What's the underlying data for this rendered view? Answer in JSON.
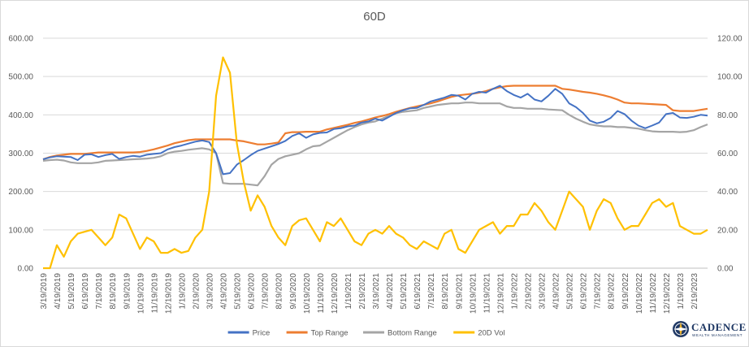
{
  "brand": {
    "name": "CADENCE",
    "tagline": "WEALTH MANAGEMENT",
    "logo_icon": "compass-globe-icon"
  },
  "chart_data": {
    "type": "line",
    "title": "60D",
    "y_left": {
      "ylim": [
        0,
        600
      ],
      "ticks": [
        "0.00",
        "100.00",
        "200.00",
        "300.00",
        "400.00",
        "500.00",
        "600.00"
      ]
    },
    "y_right": {
      "ylim": [
        0,
        120
      ],
      "ticks": [
        "0.00",
        "20.00",
        "40.00",
        "60.00",
        "80.00",
        "100.00",
        "120.00"
      ]
    },
    "x_ticks": [
      "3/19/2019",
      "4/19/2019",
      "5/19/2019",
      "6/19/2019",
      "7/19/2019",
      "8/19/2019",
      "9/19/2019",
      "10/19/2019",
      "11/19/2019",
      "12/19/2019",
      "1/19/2020",
      "2/19/2020",
      "3/19/2020",
      "4/19/2020",
      "5/19/2020",
      "6/19/2020",
      "7/19/2020",
      "8/19/2020",
      "9/19/2020",
      "10/19/2020",
      "11/19/2020",
      "12/19/2020",
      "1/19/2021",
      "2/19/2021",
      "3/19/2021",
      "4/19/2021",
      "5/19/2021",
      "6/19/2021",
      "7/19/2021",
      "8/19/2021",
      "9/19/2021",
      "10/19/2021",
      "11/19/2021",
      "12/19/2021",
      "1/19/2022",
      "2/19/2022",
      "3/19/2022",
      "4/19/2022",
      "5/19/2022",
      "6/19/2022",
      "7/19/2022",
      "8/19/2022",
      "9/19/2022",
      "10/19/2022",
      "11/19/2022",
      "12/19/2022",
      "1/19/2023",
      "2/19/2023"
    ],
    "grid": true,
    "legend_position": "bottom",
    "series": [
      {
        "name": "Price",
        "axis": "left",
        "color": "#4472c4",
        "values": [
          284,
          289,
          292,
          291,
          290,
          282,
          296,
          297,
          290,
          295,
          298,
          285,
          290,
          293,
          291,
          296,
          298,
          300,
          310,
          316,
          320,
          325,
          330,
          333,
          329,
          300,
          245,
          248,
          270,
          282,
          295,
          306,
          312,
          318,
          324,
          332,
          345,
          352,
          340,
          349,
          353,
          354,
          363,
          365,
          370,
          372,
          380,
          383,
          390,
          385,
          395,
          405,
          412,
          417,
          418,
          426,
          435,
          440,
          445,
          452,
          450,
          440,
          455,
          460,
          458,
          468,
          476,
          462,
          452,
          445,
          455,
          440,
          435,
          450,
          468,
          455,
          430,
          420,
          405,
          385,
          378,
          382,
          392,
          410,
          402,
          385,
          372,
          365,
          372,
          380,
          402,
          405,
          393,
          392,
          395,
          400,
          398
        ]
      },
      {
        "name": "Top Range",
        "axis": "left",
        "color": "#ed7d31",
        "values": [
          284,
          290,
          294,
          296,
          298,
          298,
          298,
          300,
          302,
          302,
          302,
          302,
          302,
          302,
          303,
          306,
          310,
          315,
          320,
          326,
          330,
          334,
          336,
          336,
          336,
          336,
          336,
          336,
          333,
          331,
          327,
          323,
          323,
          325,
          328,
          352,
          355,
          355,
          356,
          356,
          356,
          362,
          366,
          370,
          374,
          379,
          383,
          388,
          393,
          397,
          402,
          408,
          413,
          418,
          422,
          426,
          430,
          435,
          441,
          447,
          451,
          453,
          455,
          458,
          462,
          468,
          472,
          475,
          476,
          476,
          476,
          476,
          476,
          476,
          476,
          468,
          466,
          463,
          460,
          458,
          455,
          451,
          446,
          440,
          432,
          430,
          430,
          429,
          428,
          427,
          426,
          412,
          410,
          410,
          410,
          413,
          416
        ]
      },
      {
        "name": "Bottom Range",
        "axis": "left",
        "color": "#a5a5a5",
        "values": [
          280,
          282,
          283,
          281,
          276,
          274,
          274,
          274,
          276,
          280,
          281,
          282,
          283,
          284,
          285,
          286,
          288,
          292,
          300,
          304,
          306,
          309,
          311,
          313,
          310,
          300,
          222,
          220,
          220,
          220,
          218,
          216,
          240,
          270,
          285,
          292,
          296,
          300,
          310,
          318,
          320,
          330,
          340,
          350,
          360,
          368,
          375,
          380,
          383,
          390,
          398,
          404,
          408,
          410,
          412,
          418,
          422,
          426,
          428,
          430,
          430,
          432,
          432,
          430,
          430,
          430,
          430,
          422,
          418,
          418,
          416,
          416,
          416,
          414,
          413,
          412,
          400,
          390,
          382,
          375,
          372,
          370,
          370,
          368,
          368,
          366,
          364,
          360,
          357,
          356,
          356,
          356,
          355,
          356,
          360,
          368,
          375
        ]
      },
      {
        "name": "20D Vol",
        "axis": "right",
        "color": "#ffc000",
        "values": [
          0,
          0,
          12,
          6,
          14,
          18,
          19,
          20,
          16,
          12,
          16,
          28,
          26,
          18,
          10,
          16,
          14,
          8,
          8,
          10,
          8,
          9,
          16,
          20,
          40,
          90,
          110,
          102,
          65,
          45,
          30,
          38,
          32,
          22,
          16,
          12,
          22,
          25,
          26,
          20,
          14,
          24,
          22,
          26,
          20,
          14,
          12,
          18,
          20,
          18,
          22,
          18,
          16,
          12,
          10,
          14,
          12,
          10,
          18,
          20,
          10,
          8,
          14,
          20,
          22,
          24,
          18,
          22,
          22,
          28,
          28,
          34,
          30,
          24,
          20,
          30,
          40,
          36,
          32,
          20,
          30,
          36,
          34,
          26,
          20,
          22,
          22,
          28,
          34,
          36,
          32,
          34,
          22,
          20,
          18,
          18,
          20
        ]
      }
    ]
  }
}
